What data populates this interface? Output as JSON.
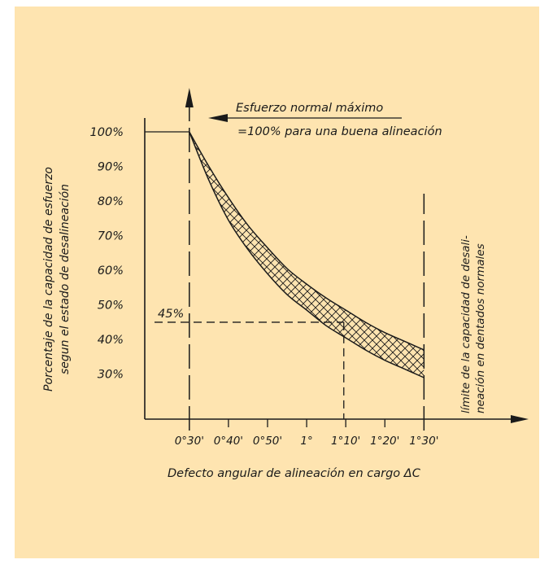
{
  "chart_data": {
    "type": "area",
    "title": "",
    "xlabel": "Defecto angular de alineación en cargo ΔC",
    "ylabel": [
      "Porcentaje de la capacidad de esfuerzo",
      "segun el estado de desalineación"
    ],
    "x_ticks": [
      {
        "value": 30,
        "label": "0°30'"
      },
      {
        "value": 40,
        "label": "0°40'"
      },
      {
        "value": 50,
        "label": "0°50'"
      },
      {
        "value": 60,
        "label": "1°"
      },
      {
        "value": 70,
        "label": "1°10'"
      },
      {
        "value": 80,
        "label": "1°20'"
      },
      {
        "value": 90,
        "label": "1°30'"
      }
    ],
    "y_ticks": [
      {
        "value": 30,
        "label": "30%"
      },
      {
        "value": 40,
        "label": "40%"
      },
      {
        "value": 50,
        "label": "50%"
      },
      {
        "value": 60,
        "label": "60%"
      },
      {
        "value": 70,
        "label": "70%"
      },
      {
        "value": 80,
        "label": "80%"
      },
      {
        "value": 90,
        "label": "90%"
      },
      {
        "value": 100,
        "label": "100%"
      }
    ],
    "xlim": [
      18.6,
      112.6
    ],
    "ylim": [
      17,
      104
    ],
    "band_upper": {
      "x": [
        30,
        35,
        40,
        45,
        50,
        55,
        60,
        65,
        70,
        75,
        80,
        85,
        90
      ],
      "y": [
        100,
        90,
        81,
        73,
        66.5,
        60.5,
        56,
        52,
        48.5,
        45,
        42,
        39.5,
        37
      ]
    },
    "band_lower": {
      "x": [
        30,
        35,
        40,
        45,
        50,
        55,
        60,
        65,
        70,
        75,
        80,
        85,
        90
      ],
      "y": [
        100,
        86,
        74.5,
        66,
        59,
        53,
        48.5,
        44,
        40.5,
        37,
        34,
        31.5,
        29
      ]
    },
    "reference_lines": [
      {
        "axis": "x",
        "value": 30,
        "style": "dashed"
      },
      {
        "axis": "x",
        "value": 90,
        "style": "dashed"
      },
      {
        "axis": "y",
        "value": 45,
        "label": "45%",
        "style": "dashed",
        "x_end": 69.5
      },
      {
        "axis": "x",
        "value": 69.5,
        "style": "dashed",
        "y_end": 45
      },
      {
        "axis": "y",
        "value": 100,
        "style": "solid"
      }
    ],
    "annotations": [
      {
        "id": "max_stress",
        "lines": [
          "Esfuerzo normal máximo",
          "=100% para una buena alineación"
        ]
      },
      {
        "id": "limit",
        "lines": [
          "límite de la capacidad de desali-",
          "neación en dentados normales"
        ]
      }
    ],
    "grid": false,
    "legend": "none"
  },
  "colors": {
    "background": "#FEE4B0",
    "ink": "#1a1a1a"
  }
}
